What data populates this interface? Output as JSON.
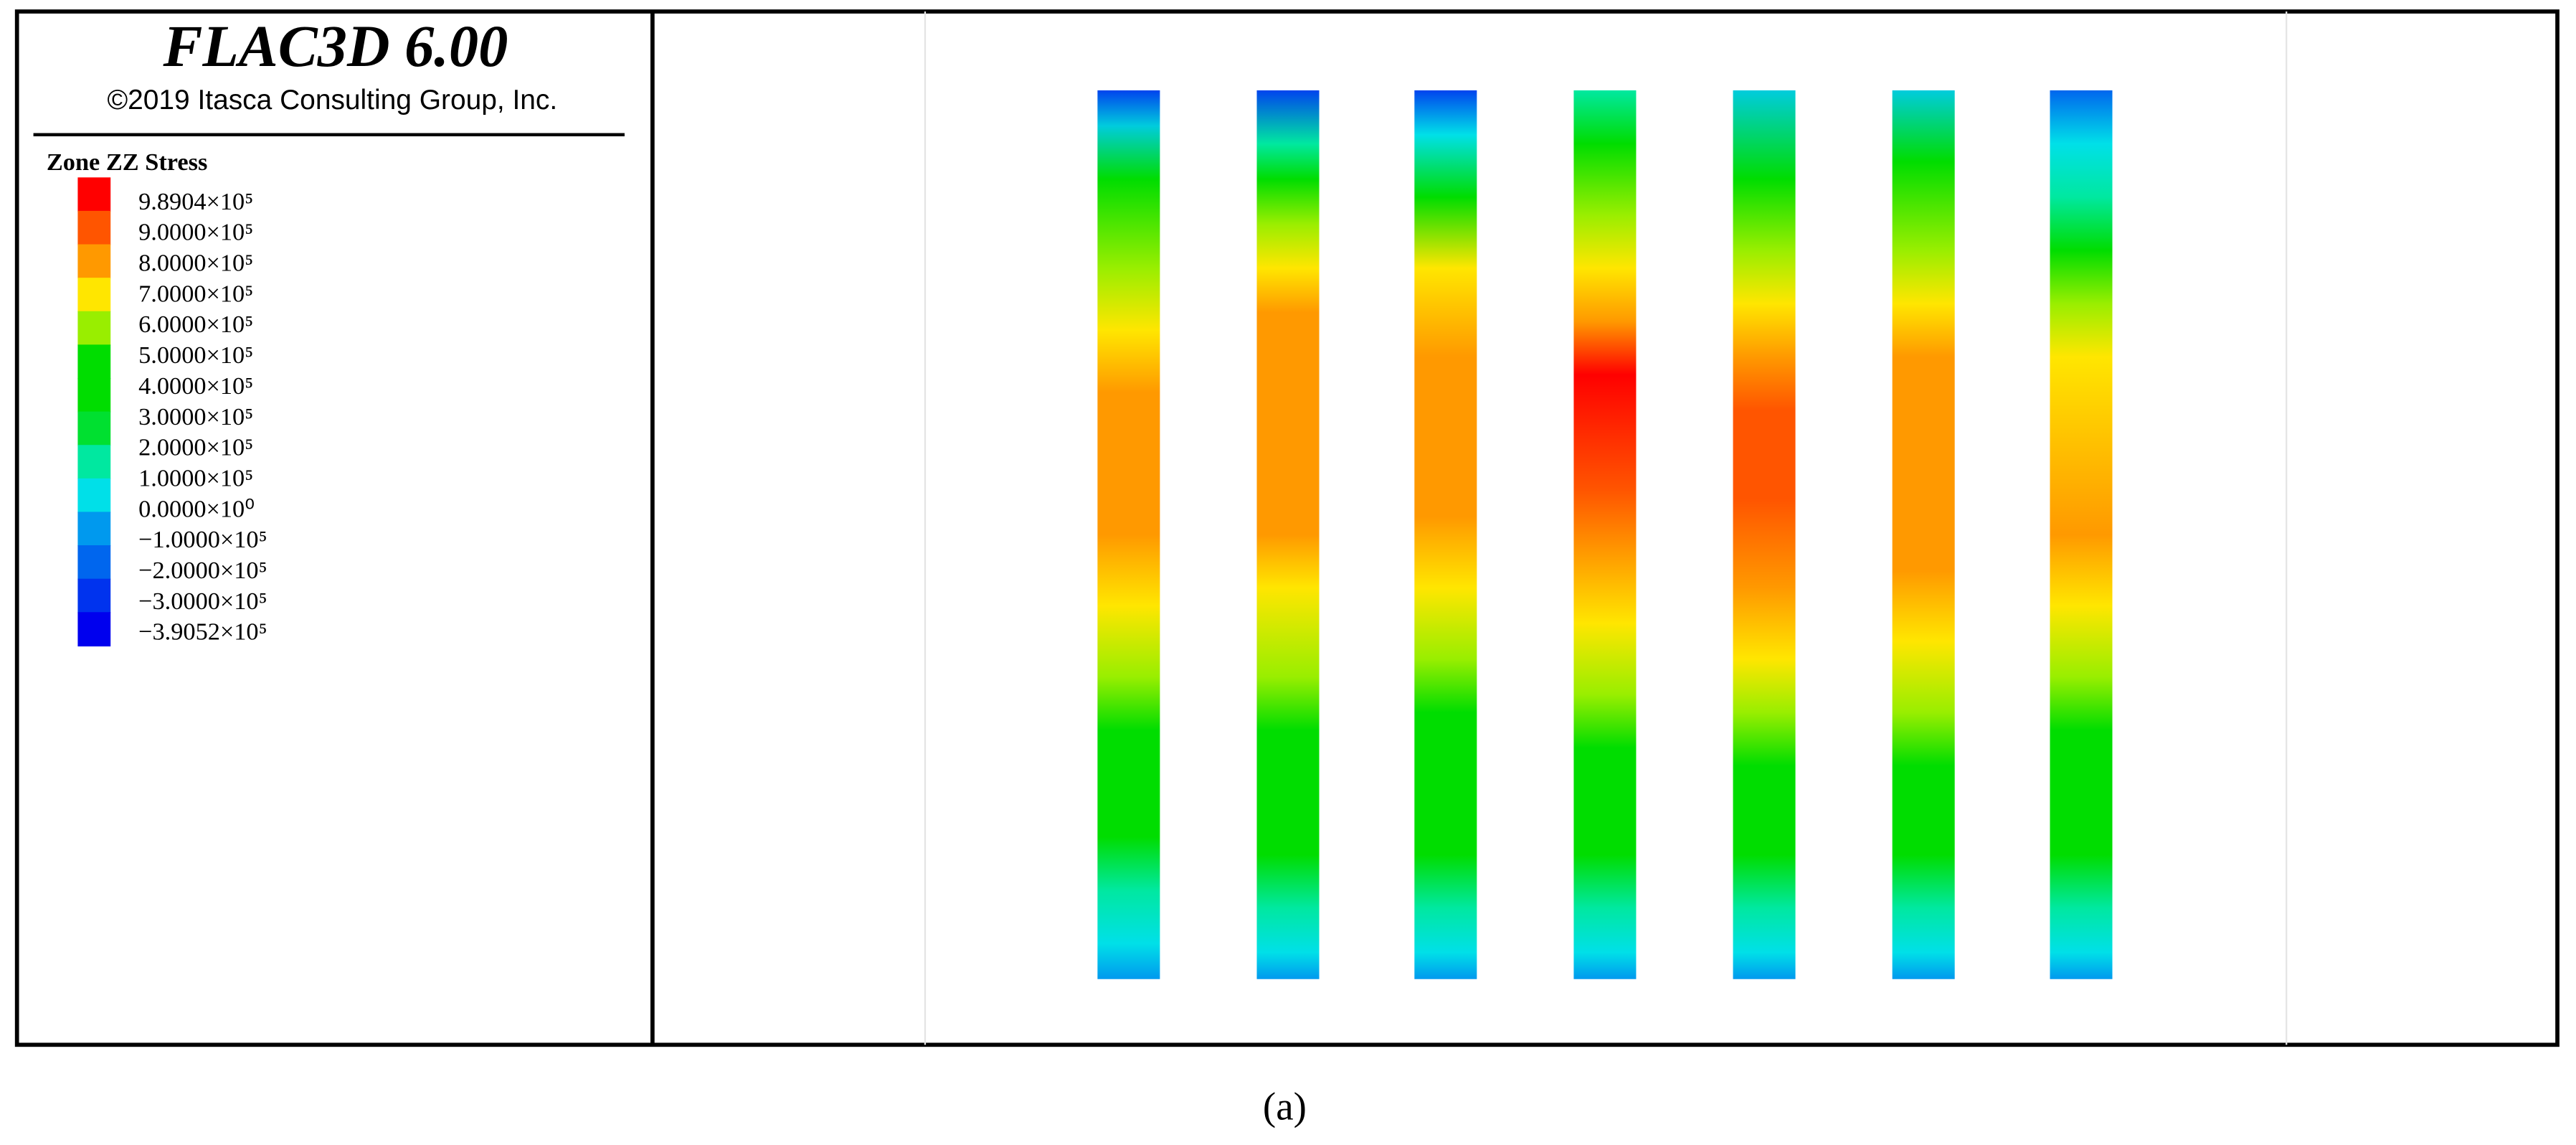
{
  "header": {
    "title": "FLAC3D 6.00",
    "copyright": "©2019 Itasca Consulting Group, Inc."
  },
  "legend": {
    "title": "Zone ZZ Stress",
    "labels": [
      "9.8904×10⁵",
      "9.0000×10⁵",
      "8.0000×10⁵",
      "7.0000×10⁵",
      "6.0000×10⁵",
      "5.0000×10⁵",
      "4.0000×10⁵",
      "3.0000×10⁵",
      "2.0000×10⁵",
      "1.0000×10⁵",
      "0.0000×10⁰",
      "−1.0000×10⁵",
      "−2.0000×10⁵",
      "−3.0000×10⁵",
      "−3.9052×10⁵"
    ],
    "colors": [
      "#ff0000",
      "#ff5500",
      "#ff9900",
      "#ffe600",
      "#99ee00",
      "#00dd00",
      "#00dd00",
      "#00e030",
      "#00e8a0",
      "#00e0e8",
      "#0099ee",
      "#0066ee",
      "#0033ee",
      "#0000ee"
    ]
  },
  "caption": "(a)"
}
